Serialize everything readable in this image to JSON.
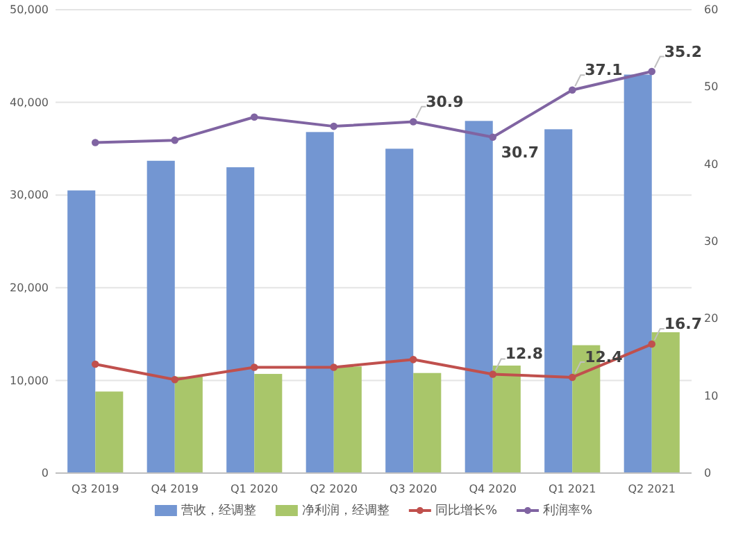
{
  "chart_data": {
    "type": "bar",
    "categories": [
      "Q3 2019",
      "Q4 2019",
      "Q1 2020",
      "Q2 2020",
      "Q3 2020",
      "Q4 2020",
      "Q1 2021",
      "Q2 2021"
    ],
    "series": [
      {
        "name": "营收，经调整",
        "color": "#7396d2",
        "values": [
          30500,
          33700,
          33000,
          36800,
          35000,
          38000,
          37100,
          43000
        ]
      },
      {
        "name": "净利润，经调整",
        "color": "#a9c66a",
        "values": [
          8800,
          10400,
          10700,
          11500,
          10800,
          11600,
          13800,
          15200
        ]
      },
      {
        "name": "同比增长%",
        "type": "line",
        "axis": "y2",
        "color": "#c0504d",
        "values": [
          14.1,
          12.1,
          13.7,
          13.7,
          14.7,
          12.8,
          12.4,
          16.7
        ],
        "value_labels": [
          null,
          null,
          null,
          null,
          null,
          "12.8",
          "12.4",
          "16.7"
        ]
      },
      {
        "name": "利润率%",
        "type": "line",
        "axis": "y2",
        "color": "#8064a2",
        "values": [
          42.8,
          43.1,
          46.1,
          44.9,
          45.5,
          43.5,
          49.6,
          52.0
        ]
      }
    ],
    "annotations": [
      {
        "text": "30.9",
        "x": "Q3 2020",
        "y": 37900
      },
      {
        "text": "30.7",
        "x": "Q4 2020",
        "y": 36300
      },
      {
        "text": "37.1",
        "x": "Q1 2021",
        "y": 41300
      },
      {
        "text": "35.2",
        "x": "Q2 2021",
        "y": 43300
      }
    ],
    "ylim": [
      0,
      50000
    ],
    "yticks": [
      {
        "value": 0,
        "label": "0"
      },
      {
        "value": 10000,
        "label": "10,000"
      },
      {
        "value": 20000,
        "label": "20,000"
      },
      {
        "value": 30000,
        "label": "30,000"
      },
      {
        "value": 40000,
        "label": "40,000"
      },
      {
        "value": 50000,
        "label": "50,000"
      }
    ],
    "y2lim": [
      0,
      60
    ],
    "y2ticks": [
      0,
      10,
      20,
      30,
      40,
      50,
      60
    ],
    "grid": "y",
    "legend": "bottom",
    "marker": "circle",
    "line_style": "solid"
  }
}
